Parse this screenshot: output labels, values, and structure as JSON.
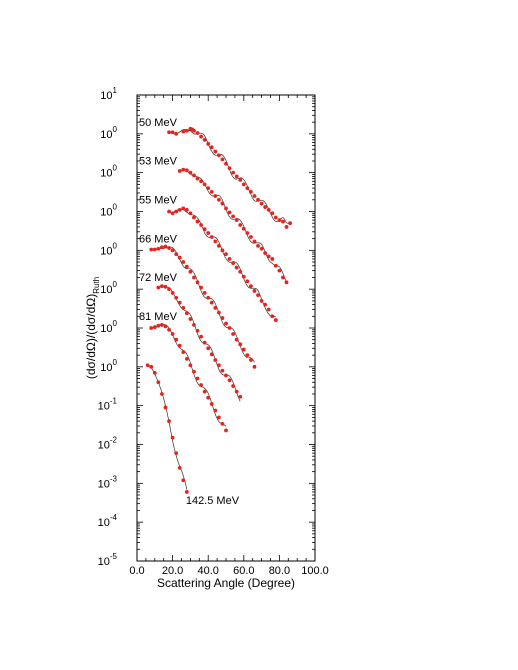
{
  "chart_data": {
    "type": "scatter",
    "xlabel": "Scattering Angle (Degree)",
    "ylabel_main": "(dσ/dΩ)/(dσ/dΩ)",
    "ylabel_sub": "Ruth",
    "xlim": [
      0,
      100
    ],
    "y_scale": "log",
    "xticks": [
      "0.0",
      "20.0",
      "40.0",
      "60.0",
      "80.0",
      "100.0"
    ],
    "yticks": [
      {
        "base": "10",
        "exp": "1"
      },
      {
        "base": "10",
        "exp": "0"
      },
      {
        "base": "10",
        "exp": "0"
      },
      {
        "base": "10",
        "exp": "0"
      },
      {
        "base": "10",
        "exp": "0"
      },
      {
        "base": "10",
        "exp": "0"
      },
      {
        "base": "10",
        "exp": "0"
      },
      {
        "base": "10",
        "exp": "0"
      },
      {
        "base": "10",
        "exp": "-1"
      },
      {
        "base": "10",
        "exp": "-2"
      },
      {
        "base": "10",
        "exp": "-3"
      },
      {
        "base": "10",
        "exp": "-4"
      },
      {
        "base": "10",
        "exp": "-5"
      }
    ],
    "grid": false,
    "series_note": "Each energy is offset vertically by one decade; points = data, line = fit",
    "series": [
      {
        "name": "50 MeV",
        "x": [
          18,
          20,
          22,
          26,
          28,
          30,
          31,
          32,
          34,
          36,
          38,
          40,
          42,
          44,
          46,
          48,
          50,
          52,
          54,
          56,
          58,
          60,
          62,
          64,
          66,
          68,
          70,
          72,
          74,
          76,
          78,
          80,
          82,
          84,
          86
        ],
        "y": [
          1.1,
          1.1,
          1.0,
          1.15,
          1.2,
          1.35,
          1.3,
          1.2,
          1.05,
          0.85,
          0.7,
          0.55,
          0.45,
          0.35,
          0.28,
          0.22,
          0.17,
          0.13,
          0.1,
          0.08,
          0.065,
          0.05,
          0.04,
          0.032,
          0.025,
          0.02,
          0.016,
          0.013,
          0.011,
          0.009,
          0.007,
          0.006,
          0.0055,
          0.004,
          0.005
        ]
      },
      {
        "name": "53 MeV",
        "x": [
          24,
          26,
          28,
          30,
          32,
          34,
          36,
          38,
          40,
          42,
          44,
          46,
          48,
          50,
          52,
          54,
          56,
          58,
          60,
          62,
          64,
          66,
          68,
          70,
          72,
          74,
          76,
          78,
          80,
          82,
          84
        ],
        "y": [
          1.1,
          1.2,
          1.15,
          1.0,
          0.85,
          0.7,
          0.6,
          0.5,
          0.4,
          0.32,
          0.25,
          0.2,
          0.16,
          0.12,
          0.095,
          0.075,
          0.06,
          0.045,
          0.036,
          0.028,
          0.022,
          0.017,
          0.013,
          0.011,
          0.0085,
          0.007,
          0.006,
          0.004,
          0.003,
          0.002,
          0.0015
        ]
      },
      {
        "name": "55 MeV",
        "x": [
          18,
          20,
          22,
          24,
          26,
          28,
          30,
          32,
          34,
          36,
          38,
          40,
          42,
          44,
          46,
          48,
          50,
          52,
          54,
          56,
          58,
          60,
          62,
          64,
          66,
          68,
          70,
          72,
          74,
          76,
          78
        ],
        "y": [
          1.0,
          0.9,
          1.0,
          1.1,
          1.2,
          1.1,
          0.9,
          0.7,
          0.55,
          0.45,
          0.35,
          0.28,
          0.22,
          0.17,
          0.13,
          0.1,
          0.08,
          0.06,
          0.047,
          0.036,
          0.028,
          0.021,
          0.016,
          0.012,
          0.009,
          0.007,
          0.005,
          0.004,
          0.003,
          0.002,
          0.0016
        ]
      },
      {
        "name": "66 MeV",
        "x": [
          8,
          10,
          12,
          14,
          16,
          18,
          20,
          22,
          24,
          26,
          28,
          30,
          32,
          34,
          36,
          38,
          40,
          42,
          44,
          46,
          48,
          50,
          52,
          54,
          56,
          58,
          60,
          62,
          64,
          66
        ],
        "y": [
          1.05,
          1.05,
          1.1,
          1.2,
          1.25,
          1.15,
          1.0,
          0.8,
          0.65,
          0.5,
          0.38,
          0.28,
          0.2,
          0.15,
          0.11,
          0.08,
          0.06,
          0.045,
          0.033,
          0.025,
          0.018,
          0.013,
          0.01,
          0.007,
          0.005,
          0.0038,
          0.0028,
          0.002,
          0.0015,
          0.001
        ]
      },
      {
        "name": "72 MeV",
        "x": [
          12,
          14,
          16,
          18,
          20,
          22,
          24,
          26,
          28,
          30,
          32,
          34,
          36,
          38,
          40,
          42,
          44,
          46,
          48,
          50,
          52,
          54,
          56,
          58
        ],
        "y": [
          1.1,
          1.2,
          1.15,
          1.0,
          0.8,
          0.6,
          0.45,
          0.33,
          0.24,
          0.17,
          0.12,
          0.085,
          0.06,
          0.042,
          0.03,
          0.021,
          0.015,
          0.011,
          0.008,
          0.006,
          0.0045,
          0.0032,
          0.0023,
          0.0017
        ]
      },
      {
        "name": "81 MeV",
        "x": [
          8,
          10,
          12,
          14,
          16,
          18,
          20,
          22,
          24,
          26,
          28,
          30,
          32,
          34,
          36,
          38,
          40,
          42,
          44,
          46,
          48,
          50
        ],
        "y": [
          1.0,
          1.05,
          1.15,
          1.2,
          1.1,
          0.9,
          0.7,
          0.5,
          0.35,
          0.24,
          0.16,
          0.11,
          0.075,
          0.05,
          0.034,
          0.023,
          0.016,
          0.011,
          0.0075,
          0.005,
          0.0034,
          0.0023
        ]
      },
      {
        "name": "142.5 MeV",
        "x": [
          6,
          8,
          10,
          12,
          14,
          16,
          18,
          20,
          22,
          24,
          26,
          28
        ],
        "y": [
          1.1,
          1.0,
          0.7,
          0.4,
          0.2,
          0.09,
          0.04,
          0.015,
          0.006,
          0.0025,
          0.0012,
          0.0006
        ]
      }
    ]
  },
  "colors": {
    "data_points": "#e8231e",
    "fit_line": "#333333"
  }
}
